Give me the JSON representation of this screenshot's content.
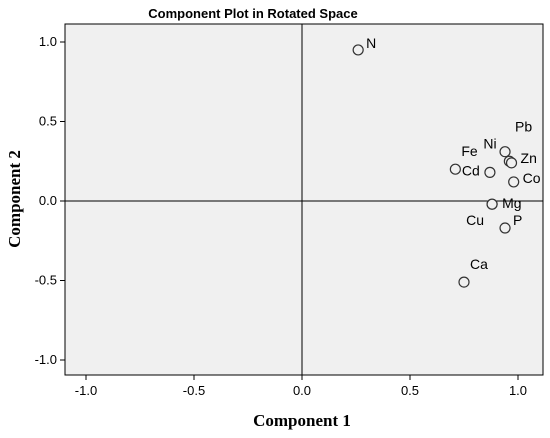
{
  "chart_data": {
    "type": "scatter",
    "title": "Component Plot in Rotated Space",
    "xlabel": "Component 1",
    "ylabel": "Component 2",
    "xlim": [
      -1.1,
      1.1
    ],
    "ylim": [
      -1.1,
      1.1
    ],
    "xticks": [
      "-1.0",
      "-0.5",
      "0.0",
      "0.5",
      "1.0"
    ],
    "yticks": [
      "1.0",
      "0.5",
      "0.0",
      "-0.5",
      "-1.0"
    ],
    "reference_lines": [
      0,
      0
    ],
    "grid": false,
    "points": [
      {
        "label": "N",
        "x": 0.26,
        "y": 0.95
      },
      {
        "label": "Pb",
        "x": 0.94,
        "y": 0.31
      },
      {
        "label": "Ni",
        "x": 0.96,
        "y": 0.25
      },
      {
        "label": "Zn",
        "x": 0.97,
        "y": 0.24
      },
      {
        "label": "Fe",
        "x": 0.71,
        "y": 0.2
      },
      {
        "label": "Cd",
        "x": 0.87,
        "y": 0.18
      },
      {
        "label": "Co",
        "x": 0.98,
        "y": 0.12
      },
      {
        "label": "Mg",
        "x": 0.88,
        "y": -0.02
      },
      {
        "label": "Cu",
        "x": 0.88,
        "y": -0.02
      },
      {
        "label": "P",
        "x": 0.94,
        "y": -0.17
      },
      {
        "label": "Ca",
        "x": 0.75,
        "y": -0.51
      }
    ],
    "colors": {
      "plot_background": "#f0f0f0",
      "marker_fill": "#f0f0f0",
      "marker_stroke": "#333333"
    }
  }
}
